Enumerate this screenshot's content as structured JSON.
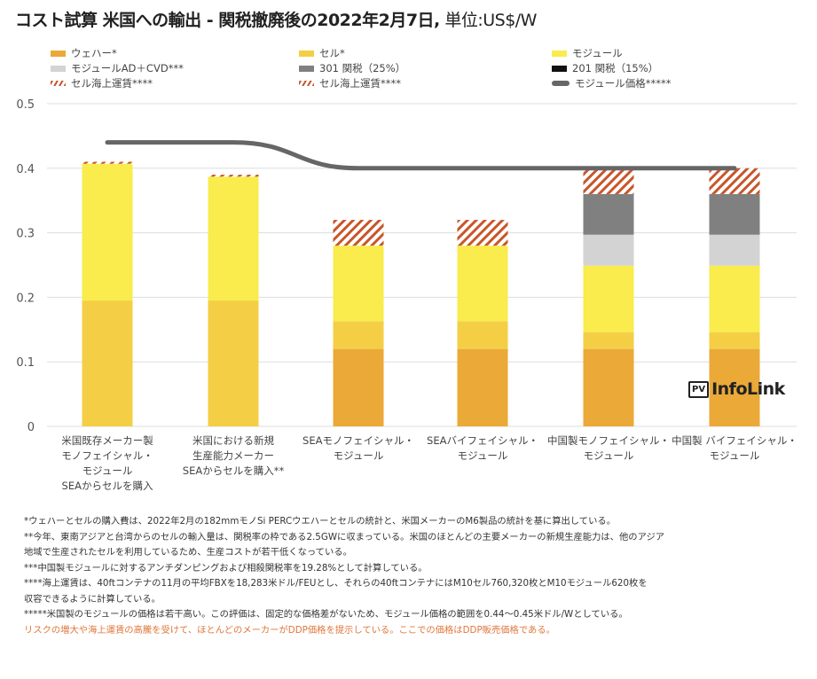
{
  "title": {
    "main": "コスト試算 米国への輸出 - 関税撤廃後の2022年2月7日,",
    "unit": " 単位:US$/W"
  },
  "colors": {
    "wafer": "#EBA938",
    "cell": "#F4CF45",
    "module": "#F9EC4C",
    "adcvd": "#D3D3D3",
    "tariff301": "#808080",
    "tariff201": "#111111",
    "shipping": "#C8562A",
    "price_line": "#666666",
    "grid": "#DDDDDD"
  },
  "legend": [
    {
      "key": "wafer",
      "label": "ウェハー*",
      "type": "box"
    },
    {
      "key": "cell",
      "label": "セル*",
      "type": "box"
    },
    {
      "key": "module",
      "label": "モジュール",
      "type": "box"
    },
    {
      "key": "adcvd",
      "label": "モジュールAD＋CVD***",
      "type": "box"
    },
    {
      "key": "tariff301",
      "label": "301 関税（25%）",
      "type": "box"
    },
    {
      "key": "tariff201",
      "label": "201 関税（15%）",
      "type": "box"
    },
    {
      "key": "shipping",
      "label": "セル海上運賃****",
      "type": "hatch"
    },
    {
      "key": "shipping",
      "label": "セル海上運賃****",
      "type": "hatch"
    },
    {
      "key": "price_line",
      "label": "モジュール価格*****",
      "type": "line"
    }
  ],
  "chart_data": {
    "type": "bar",
    "stacked": true,
    "title": "コスト試算 米国への輸出 - 関税撤廃後の2022年2月7日, 単位:US$/W",
    "xlabel": "",
    "ylabel": "US$/W",
    "ylim": [
      0,
      0.5
    ],
    "yticks": [
      "0",
      "0.1",
      "0.2",
      "0.3",
      "0.4",
      "0.5"
    ],
    "grid": true,
    "legend_position": "top",
    "categories": [
      [
        "米国既存メーカー製",
        "モノフェイシャル・",
        "モジュール",
        "SEAからセルを購入"
      ],
      [
        "米国における新規",
        "生産能力メーカー",
        "SEAからセルを購入**"
      ],
      [
        "SEAモノフェイシャル・",
        "モジュール"
      ],
      [
        "SEAバイフェイシャル・",
        "モジュール"
      ],
      [
        "中国製モノフェイシャル・",
        "モジュール"
      ],
      [
        "中国製 バイフェイシャル・",
        "モジュール"
      ]
    ],
    "series": [
      {
        "name": "ウェハー*",
        "key": "wafer",
        "values": [
          0,
          0,
          0.12,
          0.12,
          0.12,
          0.12
        ]
      },
      {
        "name": "セル*",
        "key": "cell",
        "values": [
          0.195,
          0.195,
          0.043,
          0.043,
          0.026,
          0.026
        ]
      },
      {
        "name": "モジュール",
        "key": "module",
        "values": [
          0.212,
          0.192,
          0.117,
          0.117,
          0.103,
          0.103
        ]
      },
      {
        "name": "モジュールAD＋CVD***",
        "key": "adcvd",
        "values": [
          0,
          0,
          0,
          0,
          0.048,
          0.048
        ]
      },
      {
        "name": "301 関税（25%）",
        "key": "tariff301",
        "values": [
          0,
          0,
          0,
          0,
          0.063,
          0.063
        ]
      },
      {
        "name": "201 関税（15%）",
        "key": "tariff201",
        "values": [
          0,
          0,
          0,
          0,
          0,
          0
        ]
      },
      {
        "name": "セル海上運賃****",
        "key": "shipping",
        "pattern": "hatch",
        "values": [
          0.003,
          0.003,
          0.04,
          0.04,
          0.04,
          0.04
        ]
      }
    ],
    "line_series": {
      "name": "モジュール価格*****",
      "key": "price_line",
      "values": [
        0.44,
        0.44,
        0.4,
        0.4,
        0.4,
        0.4
      ]
    }
  },
  "logo": {
    "badge": "PV",
    "text": "InfoLink"
  },
  "notes": [
    {
      "text": "*ウェハーとセルの購入費は、2022年2月の182mmモノSi PERCウエハーとセルの統計と、米国メーカーのM6製品の統計を基に算出している。",
      "style": "normal"
    },
    {
      "text": "**今年、東南アジアと台湾からのセルの輸入量は、関税率の枠である2.5GWに収まっている。米国のほとんどの主要メーカーの新規生産能力は、他のアジア",
      "style": "normal"
    },
    {
      "text": "地域で生産されたセルを利用しているため、生産コストが若干低くなっている。",
      "style": "normal"
    },
    {
      "text": "***中国製モジュールに対するアンチダンピングおよび相殺関税率を19.28%として計算している。",
      "style": "normal"
    },
    {
      "text": "****海上運賃は、40ftコンテナの11月の平均FBXを18,283米ドル/FEUとし、それらの40ftコンテナにはM10セル760,320枚とM10モジュール620枚を",
      "style": "normal"
    },
    {
      "text": "収容できるように計算している。",
      "style": "normal"
    },
    {
      "text": "*****米国製のモジュールの価格は若干高い。この評価は、固定的な価格差がないため、モジュール価格の範囲を0.44〜0.45米ドル/Wとしている。",
      "style": "normal"
    },
    {
      "text": "リスクの増大や海上運賃の高騰を受けて、ほとんどのメーカーがDDP価格を提示している。ここでの価格はDDP販売価格である。",
      "style": "orange"
    }
  ]
}
